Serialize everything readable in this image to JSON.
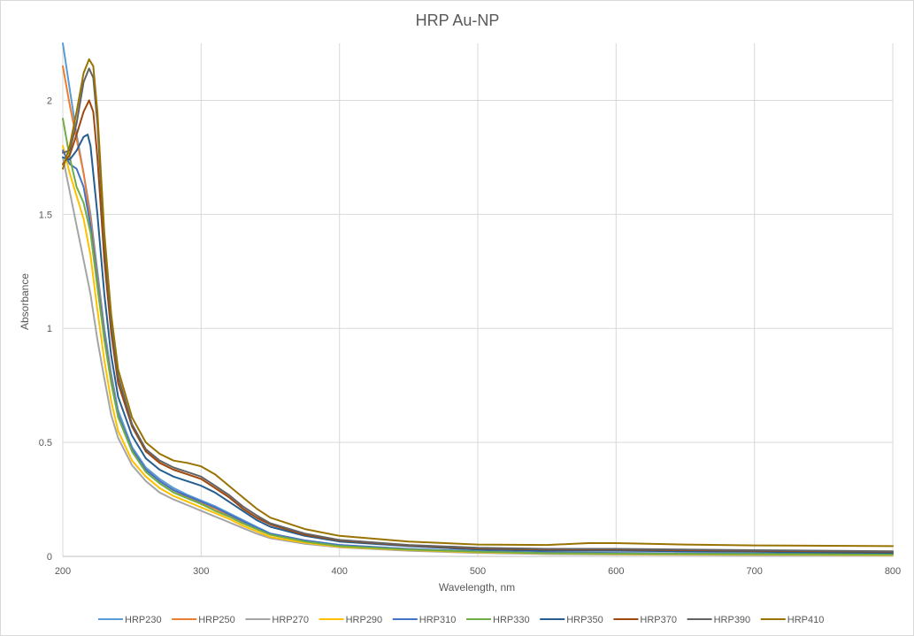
{
  "chart_data": {
    "type": "line",
    "title": "HRP Au-NP",
    "xlabel": "Wavelength, nm",
    "ylabel": "Absorbance",
    "xlim": [
      200,
      800
    ],
    "ylim": [
      0,
      2.25
    ],
    "xticks": [
      200,
      300,
      400,
      500,
      600,
      700,
      800
    ],
    "yticks": [
      0,
      0.5,
      1,
      1.5,
      2
    ],
    "xtick_labels": [
      "200",
      "300",
      "400",
      "500",
      "600",
      "700",
      "800"
    ],
    "ytick_labels": [
      "0",
      "0.5",
      "1",
      "1.5",
      "2"
    ],
    "grid": true,
    "legend_position": "bottom",
    "series": [
      {
        "name": "HRP230",
        "color": "#5B9BD5",
        "points": [
          [
            200,
            2.25
          ],
          [
            205,
            2.05
          ],
          [
            210,
            1.85
          ],
          [
            215,
            1.68
          ],
          [
            220,
            1.5
          ],
          [
            225,
            1.25
          ],
          [
            230,
            1.0
          ],
          [
            235,
            0.8
          ],
          [
            240,
            0.64
          ],
          [
            250,
            0.48
          ],
          [
            260,
            0.39
          ],
          [
            270,
            0.34
          ],
          [
            280,
            0.3
          ],
          [
            290,
            0.27
          ],
          [
            300,
            0.245
          ],
          [
            310,
            0.22
          ],
          [
            320,
            0.19
          ],
          [
            330,
            0.16
          ],
          [
            340,
            0.13
          ],
          [
            350,
            0.1
          ],
          [
            375,
            0.07
          ],
          [
            400,
            0.05
          ],
          [
            450,
            0.03
          ],
          [
            500,
            0.02
          ],
          [
            550,
            0.015
          ],
          [
            600,
            0.012
          ],
          [
            700,
            0.01
          ],
          [
            800,
            0.01
          ]
        ]
      },
      {
        "name": "HRP250",
        "color": "#ED7D31",
        "points": [
          [
            200,
            2.15
          ],
          [
            205,
            1.98
          ],
          [
            210,
            1.83
          ],
          [
            215,
            1.68
          ],
          [
            220,
            1.48
          ],
          [
            225,
            1.22
          ],
          [
            230,
            0.98
          ],
          [
            235,
            0.78
          ],
          [
            240,
            0.62
          ],
          [
            250,
            0.47
          ],
          [
            260,
            0.38
          ],
          [
            270,
            0.33
          ],
          [
            280,
            0.29
          ],
          [
            290,
            0.26
          ],
          [
            300,
            0.235
          ],
          [
            310,
            0.21
          ],
          [
            320,
            0.18
          ],
          [
            330,
            0.15
          ],
          [
            340,
            0.12
          ],
          [
            350,
            0.095
          ],
          [
            375,
            0.065
          ],
          [
            400,
            0.045
          ],
          [
            450,
            0.03
          ],
          [
            500,
            0.02
          ],
          [
            550,
            0.015
          ],
          [
            600,
            0.012
          ],
          [
            700,
            0.01
          ],
          [
            800,
            0.01
          ]
        ]
      },
      {
        "name": "HRP270",
        "color": "#A5A5A5",
        "points": [
          [
            200,
            1.75
          ],
          [
            205,
            1.6
          ],
          [
            210,
            1.45
          ],
          [
            215,
            1.3
          ],
          [
            220,
            1.15
          ],
          [
            225,
            0.95
          ],
          [
            230,
            0.78
          ],
          [
            235,
            0.62
          ],
          [
            240,
            0.52
          ],
          [
            250,
            0.4
          ],
          [
            260,
            0.33
          ],
          [
            270,
            0.28
          ],
          [
            280,
            0.25
          ],
          [
            290,
            0.225
          ],
          [
            300,
            0.2
          ],
          [
            310,
            0.175
          ],
          [
            320,
            0.15
          ],
          [
            330,
            0.125
          ],
          [
            340,
            0.1
          ],
          [
            350,
            0.08
          ],
          [
            375,
            0.055
          ],
          [
            400,
            0.04
          ],
          [
            450,
            0.025
          ],
          [
            500,
            0.015
          ],
          [
            550,
            0.01
          ],
          [
            600,
            0.008
          ],
          [
            700,
            0.006
          ],
          [
            800,
            0.005
          ]
        ]
      },
      {
        "name": "HRP290",
        "color": "#FFC000",
        "points": [
          [
            200,
            1.8
          ],
          [
            205,
            1.68
          ],
          [
            210,
            1.58
          ],
          [
            215,
            1.48
          ],
          [
            220,
            1.32
          ],
          [
            225,
            1.08
          ],
          [
            230,
            0.86
          ],
          [
            235,
            0.68
          ],
          [
            240,
            0.55
          ],
          [
            250,
            0.42
          ],
          [
            260,
            0.35
          ],
          [
            270,
            0.3
          ],
          [
            280,
            0.265
          ],
          [
            290,
            0.24
          ],
          [
            300,
            0.215
          ],
          [
            310,
            0.19
          ],
          [
            320,
            0.165
          ],
          [
            330,
            0.135
          ],
          [
            340,
            0.11
          ],
          [
            350,
            0.085
          ],
          [
            375,
            0.06
          ],
          [
            400,
            0.042
          ],
          [
            450,
            0.028
          ],
          [
            500,
            0.018
          ],
          [
            550,
            0.013
          ],
          [
            600,
            0.01
          ],
          [
            700,
            0.008
          ],
          [
            800,
            0.006
          ]
        ]
      },
      {
        "name": "HRP310",
        "color": "#4472C4",
        "points": [
          [
            200,
            1.78
          ],
          [
            205,
            1.72
          ],
          [
            210,
            1.7
          ],
          [
            215,
            1.62
          ],
          [
            220,
            1.45
          ],
          [
            225,
            1.2
          ],
          [
            230,
            0.97
          ],
          [
            235,
            0.77
          ],
          [
            240,
            0.62
          ],
          [
            250,
            0.47
          ],
          [
            260,
            0.38
          ],
          [
            270,
            0.33
          ],
          [
            280,
            0.29
          ],
          [
            290,
            0.265
          ],
          [
            300,
            0.24
          ],
          [
            310,
            0.215
          ],
          [
            320,
            0.185
          ],
          [
            330,
            0.155
          ],
          [
            340,
            0.125
          ],
          [
            350,
            0.1
          ],
          [
            375,
            0.07
          ],
          [
            400,
            0.05
          ],
          [
            450,
            0.033
          ],
          [
            500,
            0.022
          ],
          [
            550,
            0.017
          ],
          [
            600,
            0.015
          ],
          [
            700,
            0.012
          ],
          [
            800,
            0.01
          ]
        ]
      },
      {
        "name": "HRP330",
        "color": "#70AD47",
        "points": [
          [
            200,
            1.92
          ],
          [
            205,
            1.75
          ],
          [
            210,
            1.62
          ],
          [
            215,
            1.55
          ],
          [
            220,
            1.42
          ],
          [
            225,
            1.18
          ],
          [
            230,
            0.95
          ],
          [
            235,
            0.76
          ],
          [
            240,
            0.61
          ],
          [
            250,
            0.46
          ],
          [
            260,
            0.37
          ],
          [
            270,
            0.32
          ],
          [
            280,
            0.28
          ],
          [
            290,
            0.255
          ],
          [
            300,
            0.23
          ],
          [
            310,
            0.2
          ],
          [
            320,
            0.175
          ],
          [
            330,
            0.145
          ],
          [
            340,
            0.12
          ],
          [
            350,
            0.095
          ],
          [
            375,
            0.065
          ],
          [
            400,
            0.045
          ],
          [
            450,
            0.03
          ],
          [
            500,
            0.02
          ],
          [
            550,
            0.014
          ],
          [
            600,
            0.012
          ],
          [
            700,
            0.01
          ],
          [
            800,
            0.008
          ]
        ]
      },
      {
        "name": "HRP350",
        "color": "#255E91",
        "points": [
          [
            200,
            1.75
          ],
          [
            205,
            1.74
          ],
          [
            210,
            1.78
          ],
          [
            215,
            1.84
          ],
          [
            218,
            1.85
          ],
          [
            220,
            1.8
          ],
          [
            225,
            1.5
          ],
          [
            230,
            1.15
          ],
          [
            235,
            0.88
          ],
          [
            240,
            0.7
          ],
          [
            250,
            0.53
          ],
          [
            260,
            0.43
          ],
          [
            270,
            0.38
          ],
          [
            280,
            0.35
          ],
          [
            290,
            0.33
          ],
          [
            300,
            0.31
          ],
          [
            310,
            0.28
          ],
          [
            320,
            0.24
          ],
          [
            330,
            0.2
          ],
          [
            340,
            0.16
          ],
          [
            350,
            0.13
          ],
          [
            375,
            0.09
          ],
          [
            400,
            0.065
          ],
          [
            450,
            0.045
          ],
          [
            500,
            0.03
          ],
          [
            550,
            0.025
          ],
          [
            600,
            0.025
          ],
          [
            700,
            0.02
          ],
          [
            800,
            0.015
          ]
        ]
      },
      {
        "name": "HRP370",
        "color": "#9E480E",
        "points": [
          [
            200,
            1.72
          ],
          [
            205,
            1.76
          ],
          [
            210,
            1.85
          ],
          [
            215,
            1.95
          ],
          [
            219,
            2.0
          ],
          [
            222,
            1.95
          ],
          [
            225,
            1.75
          ],
          [
            230,
            1.3
          ],
          [
            235,
            0.98
          ],
          [
            240,
            0.76
          ],
          [
            250,
            0.57
          ],
          [
            260,
            0.46
          ],
          [
            270,
            0.41
          ],
          [
            280,
            0.38
          ],
          [
            290,
            0.36
          ],
          [
            300,
            0.34
          ],
          [
            310,
            0.3
          ],
          [
            320,
            0.26
          ],
          [
            330,
            0.21
          ],
          [
            340,
            0.17
          ],
          [
            350,
            0.14
          ],
          [
            375,
            0.095
          ],
          [
            400,
            0.07
          ],
          [
            450,
            0.048
          ],
          [
            500,
            0.035
          ],
          [
            550,
            0.03
          ],
          [
            600,
            0.03
          ],
          [
            700,
            0.025
          ],
          [
            800,
            0.02
          ]
        ]
      },
      {
        "name": "HRP390",
        "color": "#636363",
        "points": [
          [
            200,
            1.77
          ],
          [
            205,
            1.78
          ],
          [
            210,
            1.9
          ],
          [
            215,
            2.08
          ],
          [
            219,
            2.14
          ],
          [
            222,
            2.1
          ],
          [
            225,
            1.9
          ],
          [
            230,
            1.38
          ],
          [
            235,
            1.02
          ],
          [
            240,
            0.79
          ],
          [
            250,
            0.58
          ],
          [
            260,
            0.47
          ],
          [
            270,
            0.42
          ],
          [
            280,
            0.39
          ],
          [
            290,
            0.37
          ],
          [
            300,
            0.35
          ],
          [
            310,
            0.31
          ],
          [
            320,
            0.27
          ],
          [
            330,
            0.22
          ],
          [
            340,
            0.18
          ],
          [
            350,
            0.145
          ],
          [
            375,
            0.1
          ],
          [
            400,
            0.072
          ],
          [
            450,
            0.05
          ],
          [
            500,
            0.038
          ],
          [
            550,
            0.033
          ],
          [
            600,
            0.033
          ],
          [
            700,
            0.027
          ],
          [
            800,
            0.022
          ]
        ]
      },
      {
        "name": "HRP410",
        "color": "#997300",
        "points": [
          [
            200,
            1.7
          ],
          [
            205,
            1.8
          ],
          [
            210,
            1.95
          ],
          [
            215,
            2.12
          ],
          [
            219,
            2.18
          ],
          [
            222,
            2.15
          ],
          [
            225,
            1.95
          ],
          [
            230,
            1.42
          ],
          [
            235,
            1.06
          ],
          [
            240,
            0.82
          ],
          [
            250,
            0.61
          ],
          [
            260,
            0.5
          ],
          [
            270,
            0.45
          ],
          [
            280,
            0.42
          ],
          [
            290,
            0.41
          ],
          [
            300,
            0.395
          ],
          [
            310,
            0.36
          ],
          [
            320,
            0.31
          ],
          [
            330,
            0.26
          ],
          [
            340,
            0.21
          ],
          [
            350,
            0.17
          ],
          [
            375,
            0.12
          ],
          [
            400,
            0.09
          ],
          [
            450,
            0.065
          ],
          [
            500,
            0.052
          ],
          [
            550,
            0.05
          ],
          [
            580,
            0.058
          ],
          [
            600,
            0.058
          ],
          [
            650,
            0.052
          ],
          [
            700,
            0.048
          ],
          [
            800,
            0.045
          ]
        ]
      }
    ]
  }
}
